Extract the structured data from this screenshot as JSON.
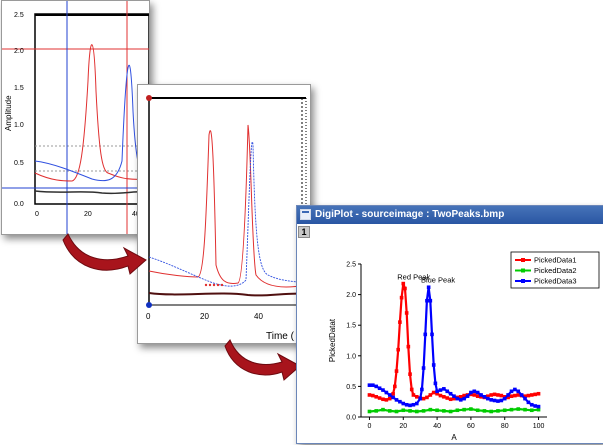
{
  "back_plot": {
    "ylabel": "Amplitude",
    "yticks": [
      "0.0",
      "0.5",
      "1.0",
      "1.5",
      "2.0",
      "2.5"
    ],
    "xticks": [
      "0",
      "20",
      "40"
    ]
  },
  "mid_plot": {
    "xticks": [
      "0",
      "20",
      "40"
    ],
    "xlabel": "Time ("
  },
  "window": {
    "title": "DigiPlot - sourceimage : TwoPeaks.bmp",
    "page_number": "1"
  },
  "chart_data": {
    "type": "line",
    "title": "",
    "xlabel": "A",
    "ylabel": "PickedDatat",
    "xlim": [
      -5,
      105
    ],
    "ylim": [
      0.0,
      2.5
    ],
    "xticks": [
      0,
      20,
      40,
      60,
      80,
      100
    ],
    "yticks": [
      0.0,
      0.5,
      1.0,
      1.5,
      2.0,
      2.5
    ],
    "legend_position": "top-right",
    "annotations": [
      {
        "text": "Red Peak",
        "x": 20,
        "y": 2.2
      },
      {
        "text": "Blue Peak",
        "x": 34,
        "y": 2.15
      }
    ],
    "series": [
      {
        "name": "PickedData1",
        "color": "#ff0000",
        "x": [
          0,
          2,
          4,
          6,
          8,
          10,
          12,
          14,
          15,
          16,
          17,
          18,
          19,
          20,
          21,
          22,
          23,
          24,
          25,
          26,
          28,
          30,
          32,
          34,
          36,
          38,
          40,
          42,
          44,
          46,
          48,
          50,
          52,
          54,
          56,
          58,
          60,
          62,
          64,
          66,
          68,
          70,
          72,
          74,
          76,
          78,
          80,
          82,
          84,
          86,
          88,
          90,
          92,
          94,
          96,
          98,
          100
        ],
        "y": [
          0.36,
          0.35,
          0.33,
          0.31,
          0.29,
          0.28,
          0.3,
          0.38,
          0.5,
          0.75,
          1.1,
          1.55,
          1.95,
          2.18,
          2.1,
          1.7,
          1.15,
          0.7,
          0.45,
          0.36,
          0.33,
          0.31,
          0.3,
          0.32,
          0.36,
          0.4,
          0.38,
          0.35,
          0.33,
          0.31,
          0.29,
          0.3,
          0.32,
          0.33,
          0.35,
          0.36,
          0.37,
          0.36,
          0.34,
          0.33,
          0.32,
          0.34,
          0.36,
          0.37,
          0.36,
          0.35,
          0.33,
          0.32,
          0.34,
          0.35,
          0.36,
          0.35,
          0.34,
          0.35,
          0.36,
          0.37,
          0.38
        ]
      },
      {
        "name": "PickedData2",
        "color": "#00cc00",
        "x": [
          0,
          4,
          8,
          12,
          16,
          20,
          24,
          28,
          32,
          36,
          40,
          44,
          48,
          52,
          56,
          60,
          64,
          68,
          72,
          76,
          80,
          84,
          88,
          92,
          96,
          100
        ],
        "y": [
          0.09,
          0.1,
          0.12,
          0.1,
          0.09,
          0.11,
          0.1,
          0.09,
          0.1,
          0.12,
          0.11,
          0.1,
          0.09,
          0.11,
          0.12,
          0.13,
          0.11,
          0.1,
          0.09,
          0.1,
          0.11,
          0.12,
          0.13,
          0.12,
          0.11,
          0.12
        ]
      },
      {
        "name": "PickedData3",
        "color": "#0000ff",
        "x": [
          0,
          2,
          4,
          6,
          8,
          10,
          12,
          14,
          16,
          18,
          20,
          22,
          24,
          26,
          28,
          30,
          31,
          32,
          33,
          34,
          35,
          36,
          37,
          38,
          39,
          40,
          42,
          44,
          46,
          48,
          50,
          52,
          54,
          56,
          58,
          60,
          62,
          64,
          66,
          68,
          70,
          72,
          74,
          76,
          78,
          80,
          82,
          84,
          86,
          88,
          90,
          92,
          94,
          96,
          98,
          100
        ],
        "y": [
          0.52,
          0.52,
          0.5,
          0.47,
          0.44,
          0.4,
          0.36,
          0.32,
          0.28,
          0.25,
          0.22,
          0.2,
          0.19,
          0.2,
          0.22,
          0.3,
          0.45,
          0.8,
          1.35,
          1.9,
          2.12,
          1.9,
          1.35,
          0.85,
          0.55,
          0.42,
          0.44,
          0.46,
          0.42,
          0.38,
          0.34,
          0.3,
          0.28,
          0.3,
          0.34,
          0.4,
          0.42,
          0.4,
          0.36,
          0.33,
          0.3,
          0.28,
          0.27,
          0.26,
          0.27,
          0.3,
          0.36,
          0.42,
          0.45,
          0.42,
          0.36,
          0.3,
          0.24,
          0.2,
          0.18,
          0.17
        ]
      }
    ]
  }
}
